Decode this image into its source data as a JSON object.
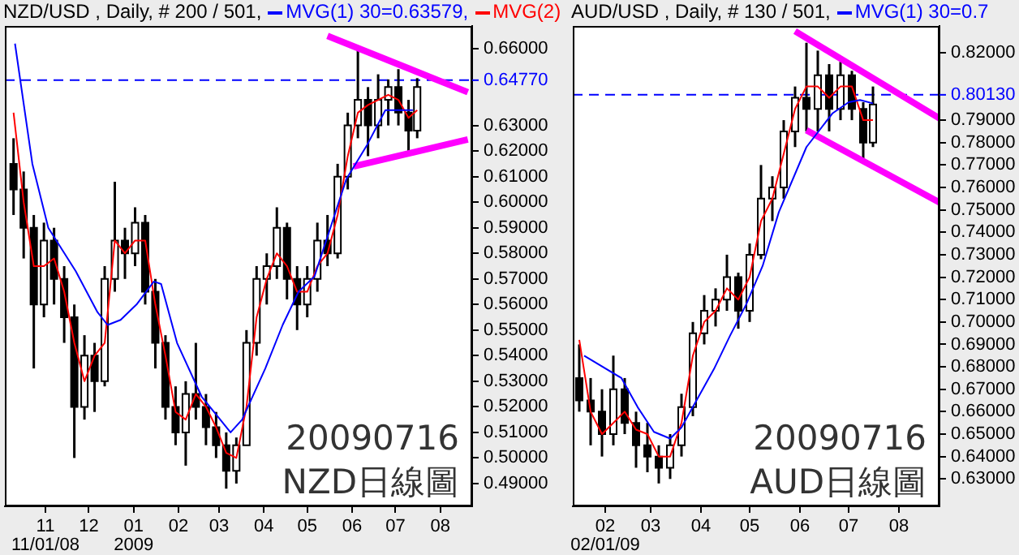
{
  "chart_data": [
    {
      "type": "candlestick",
      "title": "NZD/USD , Daily, # 200 / 501,",
      "legend": "top",
      "x": [
        "2008-10-10",
        "2008-10-17",
        "2008-10-24",
        "2008-10-31",
        "2008-11-07",
        "2008-11-14",
        "2008-11-21",
        "2008-11-28",
        "2008-12-05",
        "2008-12-12",
        "2008-12-19",
        "2008-12-26",
        "2009-01-02",
        "2009-01-09",
        "2009-01-16",
        "2009-01-23",
        "2009-01-30",
        "2009-02-06",
        "2009-02-13",
        "2009-02-20",
        "2009-02-27",
        "2009-03-06",
        "2009-03-13",
        "2009-03-20",
        "2009-03-27",
        "2009-04-03",
        "2009-04-10",
        "2009-04-17",
        "2009-04-24",
        "2009-05-01",
        "2009-05-08",
        "2009-05-15",
        "2009-05-22",
        "2009-05-29",
        "2009-06-05",
        "2009-06-12",
        "2009-06-19",
        "2009-06-26",
        "2009-07-03",
        "2009-07-10",
        "2009-07-16"
      ],
      "ohlc": [
        [
          0.615,
          0.625,
          0.595,
          0.605
        ],
        [
          0.605,
          0.612,
          0.578,
          0.59
        ],
        [
          0.59,
          0.595,
          0.535,
          0.56
        ],
        [
          0.56,
          0.592,
          0.555,
          0.585
        ],
        [
          0.585,
          0.59,
          0.56,
          0.57
        ],
        [
          0.57,
          0.575,
          0.545,
          0.555
        ],
        [
          0.555,
          0.56,
          0.5,
          0.52
        ],
        [
          0.52,
          0.548,
          0.515,
          0.54
        ],
        [
          0.54,
          0.545,
          0.518,
          0.53
        ],
        [
          0.53,
          0.575,
          0.528,
          0.57
        ],
        [
          0.57,
          0.608,
          0.565,
          0.585
        ],
        [
          0.585,
          0.59,
          0.57,
          0.58
        ],
        [
          0.58,
          0.598,
          0.575,
          0.592
        ],
        [
          0.592,
          0.595,
          0.56,
          0.565
        ],
        [
          0.565,
          0.57,
          0.535,
          0.545
        ],
        [
          0.545,
          0.548,
          0.515,
          0.52
        ],
        [
          0.52,
          0.528,
          0.505,
          0.51
        ],
        [
          0.51,
          0.53,
          0.497,
          0.525
        ],
        [
          0.525,
          0.545,
          0.515,
          0.52
        ],
        [
          0.52,
          0.525,
          0.505,
          0.512
        ],
        [
          0.512,
          0.518,
          0.5,
          0.505
        ],
        [
          0.505,
          0.51,
          0.488,
          0.495
        ],
        [
          0.495,
          0.508,
          0.49,
          0.505
        ],
        [
          0.505,
          0.55,
          0.505,
          0.545
        ],
        [
          0.545,
          0.575,
          0.54,
          0.57
        ],
        [
          0.57,
          0.58,
          0.56,
          0.575
        ],
        [
          0.575,
          0.598,
          0.57,
          0.59
        ],
        [
          0.59,
          0.592,
          0.562,
          0.57
        ],
        [
          0.57,
          0.575,
          0.55,
          0.56
        ],
        [
          0.56,
          0.575,
          0.555,
          0.57
        ],
        [
          0.57,
          0.592,
          0.565,
          0.585
        ],
        [
          0.585,
          0.595,
          0.575,
          0.58
        ],
        [
          0.58,
          0.615,
          0.578,
          0.61
        ],
        [
          0.61,
          0.635,
          0.605,
          0.63
        ],
        [
          0.63,
          0.66,
          0.625,
          0.64
        ],
        [
          0.64,
          0.645,
          0.618,
          0.63
        ],
        [
          0.63,
          0.65,
          0.625,
          0.64
        ],
        [
          0.64,
          0.648,
          0.63,
          0.645
        ],
        [
          0.645,
          0.652,
          0.63,
          0.635
        ],
        [
          0.635,
          0.64,
          0.62,
          0.628
        ],
        [
          0.628,
          0.6485,
          0.625,
          0.645
        ]
      ],
      "series": [
        {
          "type": "line",
          "name": "MVG(1) 30=0.63579,",
          "color": "#0000ff",
          "x": [
            "2008-10-11",
            "2008-10-23",
            "2008-11-03",
            "2008-11-22",
            "2008-12-07",
            "2008-12-14",
            "2008-12-23",
            "2009-01-03",
            "2009-01-15",
            "2009-01-20",
            "2009-01-31",
            "2009-02-17",
            "2009-03-09",
            "2009-03-17",
            "2009-04-02",
            "2009-04-14",
            "2009-04-25",
            "2009-05-06",
            "2009-05-17",
            "2009-05-28",
            "2009-06-11",
            "2009-06-24",
            "2009-07-05",
            "2009-07-13"
          ],
          "values": [
            0.662,
            0.615,
            0.59,
            0.573,
            0.557,
            0.552,
            0.554,
            0.56,
            0.569,
            0.568,
            0.545,
            0.524,
            0.51,
            0.515,
            0.535,
            0.552,
            0.565,
            0.571,
            0.59,
            0.609,
            0.622,
            0.636,
            0.636,
            0.636
          ]
        },
        {
          "type": "line",
          "name": "MVG(2)",
          "color": "#ff0000",
          "x": [
            "2008-10-10",
            "2008-10-17",
            "2008-10-24",
            "2008-10-31",
            "2008-11-07",
            "2008-11-14",
            "2008-11-21",
            "2008-11-28",
            "2008-12-05",
            "2008-12-12",
            "2008-12-19",
            "2008-12-26",
            "2009-01-02",
            "2009-01-09",
            "2009-01-16",
            "2009-01-23",
            "2009-01-30",
            "2009-02-06",
            "2009-02-13",
            "2009-02-20",
            "2009-02-27",
            "2009-03-06",
            "2009-03-13",
            "2009-03-20",
            "2009-03-27",
            "2009-04-03",
            "2009-04-10",
            "2009-04-17",
            "2009-04-24",
            "2009-05-01",
            "2009-05-08",
            "2009-05-15",
            "2009-05-22",
            "2009-05-29",
            "2009-06-05",
            "2009-06-12",
            "2009-06-19",
            "2009-06-26",
            "2009-07-03",
            "2009-07-10",
            "2009-07-16"
          ],
          "values": [
            0.635,
            0.6,
            0.575,
            0.575,
            0.578,
            0.565,
            0.545,
            0.53,
            0.54,
            0.545,
            0.585,
            0.58,
            0.585,
            0.585,
            0.56,
            0.54,
            0.518,
            0.515,
            0.525,
            0.52,
            0.512,
            0.502,
            0.5,
            0.52,
            0.555,
            0.57,
            0.58,
            0.575,
            0.565,
            0.565,
            0.575,
            0.58,
            0.595,
            0.618,
            0.635,
            0.638,
            0.64,
            0.642,
            0.64,
            0.633,
            0.636
          ]
        },
        {
          "type": "line",
          "color": "#ff00ff",
          "x": [
            "2009-05-15",
            "2009-08-20"
          ],
          "values": [
            0.665,
            0.643
          ]
        },
        {
          "type": "line",
          "color": "#ff00ff",
          "x": [
            "2009-06-02",
            "2009-08-20"
          ],
          "values": [
            0.614,
            0.6245
          ]
        }
      ],
      "xlim": [
        "2008-10-04",
        "2009-08-23"
      ],
      "xticks": [
        {
          "value": "2008-11-01",
          "label": "11"
        },
        {
          "value": "2008-12-01",
          "label": "12"
        },
        {
          "value": "2009-01-01",
          "label": "01"
        },
        {
          "value": "2009-02-01",
          "label": "02"
        },
        {
          "value": "2009-03-01",
          "label": "03"
        },
        {
          "value": "2009-04-01",
          "label": "04"
        },
        {
          "value": "2009-05-01",
          "label": "05"
        },
        {
          "value": "2009-06-01",
          "label": "06"
        },
        {
          "value": "2009-07-01",
          "label": "07"
        },
        {
          "value": "2009-08-01",
          "label": "08"
        }
      ],
      "ylim": [
        0.4811,
        0.6689
      ],
      "yticks": [
        {
          "value": 0.49,
          "label": "0.49000"
        },
        {
          "value": 0.5,
          "label": "0.50000"
        },
        {
          "value": 0.51,
          "label": "0.51000"
        },
        {
          "value": 0.52,
          "label": "0.52000"
        },
        {
          "value": 0.53,
          "label": "0.53000"
        },
        {
          "value": 0.54,
          "label": "0.54000"
        },
        {
          "value": 0.55,
          "label": "0.55000"
        },
        {
          "value": 0.56,
          "label": "0.56000"
        },
        {
          "value": 0.57,
          "label": "0.57000"
        },
        {
          "value": 0.58,
          "label": "0.58000"
        },
        {
          "value": 0.59,
          "label": "0.59000"
        },
        {
          "value": 0.6,
          "label": "0.60000"
        },
        {
          "value": 0.61,
          "label": "0.61000"
        },
        {
          "value": 0.62,
          "label": "0.62000"
        },
        {
          "value": 0.63,
          "label": "0.63000"
        },
        {
          "value": 0.66,
          "label": "0.66000"
        }
      ],
      "ref_lines": [
        {
          "axis": "y",
          "value": 0.6477,
          "label": "0.64770",
          "color": "#0000ff",
          "line_style": "dashed"
        }
      ],
      "annotations": [
        "20090716",
        "NZD日線圖",
        "11/01/08",
        "2009"
      ]
    },
    {
      "type": "candlestick",
      "title": "AUD/USD , Daily, # 130 / 501,",
      "legend": "top",
      "x": [
        "2009-01-16",
        "2009-01-23",
        "2009-01-30",
        "2009-02-06",
        "2009-02-13",
        "2009-02-20",
        "2009-02-27",
        "2009-03-06",
        "2009-03-13",
        "2009-03-20",
        "2009-03-27",
        "2009-04-03",
        "2009-04-10",
        "2009-04-17",
        "2009-04-24",
        "2009-05-01",
        "2009-05-08",
        "2009-05-15",
        "2009-05-22",
        "2009-05-29",
        "2009-06-05",
        "2009-06-12",
        "2009-06-19",
        "2009-06-26",
        "2009-07-03",
        "2009-07-10",
        "2009-07-16"
      ],
      "ohlc": [
        [
          0.675,
          0.69,
          0.66,
          0.665
        ],
        [
          0.665,
          0.675,
          0.645,
          0.66
        ],
        [
          0.66,
          0.67,
          0.64,
          0.65
        ],
        [
          0.65,
          0.685,
          0.645,
          0.67
        ],
        [
          0.67,
          0.675,
          0.65,
          0.655
        ],
        [
          0.655,
          0.66,
          0.635,
          0.645
        ],
        [
          0.645,
          0.655,
          0.633,
          0.64
        ],
        [
          0.64,
          0.645,
          0.628,
          0.635
        ],
        [
          0.635,
          0.65,
          0.63,
          0.645
        ],
        [
          0.645,
          0.668,
          0.64,
          0.662
        ],
        [
          0.662,
          0.7,
          0.658,
          0.695
        ],
        [
          0.695,
          0.712,
          0.69,
          0.705
        ],
        [
          0.705,
          0.715,
          0.698,
          0.71
        ],
        [
          0.71,
          0.73,
          0.705,
          0.72
        ],
        [
          0.72,
          0.722,
          0.697,
          0.705
        ],
        [
          0.705,
          0.735,
          0.7,
          0.73
        ],
        [
          0.73,
          0.77,
          0.728,
          0.755
        ],
        [
          0.755,
          0.765,
          0.745,
          0.76
        ],
        [
          0.76,
          0.79,
          0.755,
          0.785
        ],
        [
          0.785,
          0.805,
          0.778,
          0.8
        ],
        [
          0.8,
          0.8245,
          0.785,
          0.795
        ],
        [
          0.795,
          0.821,
          0.785,
          0.81
        ],
        [
          0.81,
          0.815,
          0.785,
          0.795
        ],
        [
          0.795,
          0.816,
          0.79,
          0.81
        ],
        [
          0.81,
          0.812,
          0.79,
          0.795
        ],
        [
          0.795,
          0.798,
          0.772,
          0.78
        ],
        [
          0.78,
          0.805,
          0.778,
          0.797
        ]
      ],
      "series": [
        {
          "type": "line",
          "name": "MVG(1) 30=0.7",
          "color": "#0000ff",
          "x": [
            "2009-01-19",
            "2009-02-11",
            "2009-02-21",
            "2009-03-03",
            "2009-03-13",
            "2009-03-20",
            "2009-03-30",
            "2009-04-09",
            "2009-04-19",
            "2009-04-29",
            "2009-05-09",
            "2009-05-19",
            "2009-06-05",
            "2009-06-21",
            "2009-07-01",
            "2009-07-08",
            "2009-07-16"
          ],
          "values": [
            0.685,
            0.675,
            0.662,
            0.651,
            0.648,
            0.653,
            0.666,
            0.679,
            0.694,
            0.708,
            0.725,
            0.749,
            0.778,
            0.793,
            0.798,
            0.799,
            0.7975
          ]
        },
        {
          "type": "line",
          "color": "#ff0000",
          "x": [
            "2009-01-16",
            "2009-01-23",
            "2009-01-30",
            "2009-02-06",
            "2009-02-13",
            "2009-02-20",
            "2009-02-27",
            "2009-03-06",
            "2009-03-13",
            "2009-03-20",
            "2009-03-27",
            "2009-04-03",
            "2009-04-10",
            "2009-04-17",
            "2009-04-24",
            "2009-05-01",
            "2009-05-08",
            "2009-05-15",
            "2009-05-22",
            "2009-05-29",
            "2009-06-05",
            "2009-06-12",
            "2009-06-19",
            "2009-06-26",
            "2009-07-03",
            "2009-07-10",
            "2009-07-16"
          ],
          "values": [
            0.692,
            0.66,
            0.65,
            0.655,
            0.66,
            0.652,
            0.65,
            0.64,
            0.64,
            0.655,
            0.685,
            0.7,
            0.705,
            0.715,
            0.71,
            0.72,
            0.745,
            0.755,
            0.775,
            0.795,
            0.805,
            0.805,
            0.8,
            0.805,
            0.805,
            0.79,
            0.79
          ]
        },
        {
          "type": "line",
          "color": "#ff00ff",
          "x": [
            "2009-05-29",
            "2009-08-26"
          ],
          "values": [
            0.8297,
            0.7908
          ]
        },
        {
          "type": "line",
          "color": "#ff00ff",
          "x": [
            "2009-06-05",
            "2009-08-26"
          ],
          "values": [
            0.7855,
            0.7533
          ]
        }
      ],
      "xlim": [
        "2009-01-12",
        "2009-08-26"
      ],
      "xticks": [
        {
          "value": "2009-02-01",
          "label": "02"
        },
        {
          "value": "2009-03-01",
          "label": "03"
        },
        {
          "value": "2009-04-01",
          "label": "04"
        },
        {
          "value": "2009-05-01",
          "label": "05"
        },
        {
          "value": "2009-06-01",
          "label": "06"
        },
        {
          "value": "2009-07-01",
          "label": "07"
        },
        {
          "value": "2009-08-01",
          "label": "08"
        }
      ],
      "ylim": [
        0.6178,
        0.832
      ],
      "yticks": [
        {
          "value": 0.63,
          "label": "0.63000"
        },
        {
          "value": 0.64,
          "label": "0.64000"
        },
        {
          "value": 0.65,
          "label": "0.65000"
        },
        {
          "value": 0.66,
          "label": "0.66000"
        },
        {
          "value": 0.67,
          "label": "0.67000"
        },
        {
          "value": 0.68,
          "label": "0.68000"
        },
        {
          "value": 0.69,
          "label": "0.69000"
        },
        {
          "value": 0.7,
          "label": "0.70000"
        },
        {
          "value": 0.71,
          "label": "0.71000"
        },
        {
          "value": 0.72,
          "label": "0.72000"
        },
        {
          "value": 0.73,
          "label": "0.73000"
        },
        {
          "value": 0.74,
          "label": "0.74000"
        },
        {
          "value": 0.75,
          "label": "0.75000"
        },
        {
          "value": 0.76,
          "label": "0.76000"
        },
        {
          "value": 0.77,
          "label": "0.77000"
        },
        {
          "value": 0.78,
          "label": "0.78000"
        },
        {
          "value": 0.79,
          "label": "0.79000"
        },
        {
          "value": 0.82,
          "label": "0.82000"
        }
      ],
      "ref_lines": [
        {
          "axis": "y",
          "value": 0.8013,
          "label": "0.80130",
          "color": "#0000ff",
          "line_style": "dashed"
        }
      ],
      "annotations": [
        "20090716",
        "AUD日線圖",
        "02/01/09"
      ]
    }
  ]
}
